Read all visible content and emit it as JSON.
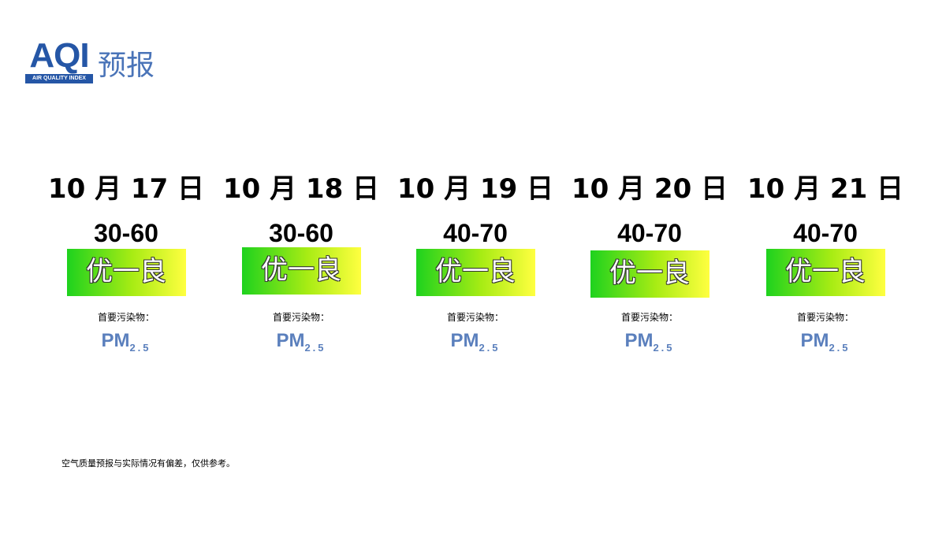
{
  "header": {
    "logo_text": "AQI",
    "logo_subtitle": "AIR QUALITY INDEX",
    "title": "预报"
  },
  "days": [
    {
      "date": "10 月 17 日",
      "range": "30-60",
      "level": "优一良",
      "pollutant_label": "首要污染物：",
      "pollutant": "PM",
      "pollutant_sub": "2.5"
    },
    {
      "date": "10 月 18 日",
      "range": "30-60",
      "level": "优一良",
      "pollutant_label": "首要污染物：",
      "pollutant": "PM",
      "pollutant_sub": "2.5"
    },
    {
      "date": "10 月 19 日",
      "range": "40-70",
      "level": "优一良",
      "pollutant_label": "首要污染物：",
      "pollutant": "PM",
      "pollutant_sub": "2.5"
    },
    {
      "date": "10 月 20 日",
      "range": "40-70",
      "level": "优一良",
      "pollutant_label": "首要污染物：",
      "pollutant": "PM",
      "pollutant_sub": "2.5"
    },
    {
      "date": "10 月 21 日",
      "range": "40-70",
      "level": "优一良",
      "pollutant_label": "首要污染物：",
      "pollutant": "PM",
      "pollutant_sub": "2.5"
    }
  ],
  "footer": {
    "note": "空气质量预报与实际情况有偏差，仅供参考。"
  }
}
